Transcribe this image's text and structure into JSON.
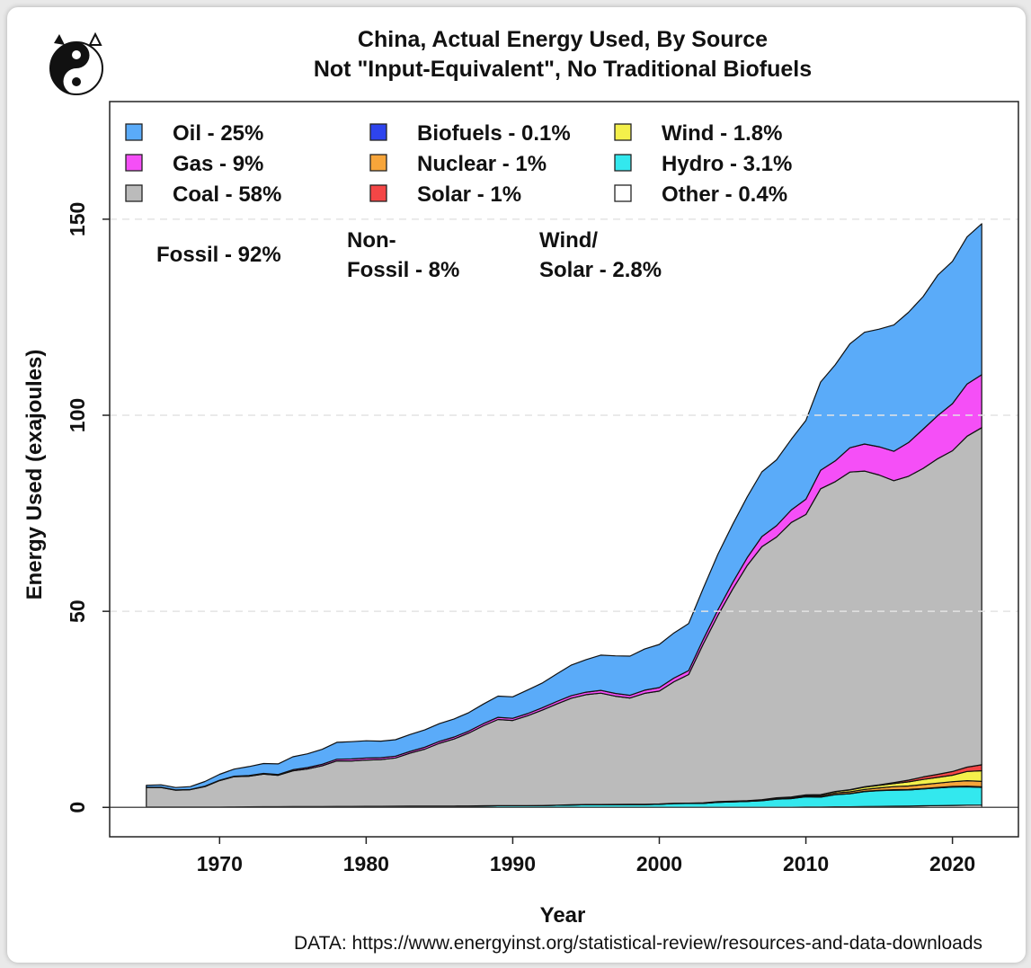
{
  "chart_data": {
    "type": "area",
    "title": "China, Actual Energy Used, By Source",
    "subtitle": "Not \"Input-Equivalent\", No Traditional Biofuels",
    "xlabel": "Year",
    "ylabel": "Energy Used (exajoules)",
    "xlim": [
      1962.5,
      2024.5
    ],
    "ylim": [
      -7.5,
      180
    ],
    "x_ticks": [
      1970,
      1980,
      1990,
      2000,
      2010,
      2020
    ],
    "y_ticks": [
      0,
      50,
      100,
      150
    ],
    "grid": "horizontal dashed",
    "legend": "top-left, inside plot, 3 columns",
    "x": [
      1965,
      1966,
      1967,
      1968,
      1969,
      1970,
      1971,
      1972,
      1973,
      1974,
      1975,
      1976,
      1977,
      1978,
      1979,
      1980,
      1981,
      1982,
      1983,
      1984,
      1985,
      1986,
      1987,
      1988,
      1989,
      1990,
      1991,
      1992,
      1993,
      1994,
      1995,
      1996,
      1997,
      1998,
      1999,
      2000,
      2001,
      2002,
      2003,
      2004,
      2005,
      2006,
      2007,
      2008,
      2009,
      2010,
      2011,
      2012,
      2013,
      2014,
      2015,
      2016,
      2017,
      2018,
      2019,
      2020,
      2021,
      2022
    ],
    "series": [
      {
        "name": "Other - 0.4%",
        "color": "#ffffff",
        "values": [
          0,
          0,
          0,
          0,
          0,
          0,
          0,
          0,
          0,
          0,
          0,
          0,
          0,
          0,
          0,
          0,
          0,
          0,
          0,
          0,
          0,
          0,
          0,
          0,
          0,
          0,
          0,
          0,
          0,
          0,
          0,
          0,
          0,
          0,
          0,
          0,
          0,
          0,
          0,
          0,
          0,
          0,
          0,
          0,
          0.05,
          0.1,
          0.1,
          0.15,
          0.15,
          0.2,
          0.25,
          0.3,
          0.35,
          0.4,
          0.45,
          0.5,
          0.55,
          0.6
        ]
      },
      {
        "name": "Hydro - 3.1%",
        "color": "#33e8ee",
        "values": [
          0.08,
          0.09,
          0.09,
          0.1,
          0.1,
          0.12,
          0.14,
          0.15,
          0.17,
          0.18,
          0.2,
          0.2,
          0.2,
          0.24,
          0.25,
          0.27,
          0.28,
          0.3,
          0.33,
          0.35,
          0.35,
          0.35,
          0.36,
          0.4,
          0.42,
          0.45,
          0.45,
          0.47,
          0.55,
          0.6,
          0.68,
          0.68,
          0.7,
          0.73,
          0.73,
          0.8,
          0.98,
          1.0,
          1.02,
          1.3,
          1.42,
          1.5,
          1.7,
          2.1,
          2.2,
          2.6,
          2.5,
          3.1,
          3.3,
          3.8,
          4.0,
          4.1,
          4.1,
          4.3,
          4.5,
          4.7,
          4.7,
          4.5
        ]
      },
      {
        "name": "Biofuels - 0.1%",
        "color": "#2e44ee",
        "values": [
          0,
          0,
          0,
          0,
          0,
          0,
          0,
          0,
          0,
          0,
          0,
          0,
          0,
          0,
          0,
          0,
          0,
          0,
          0,
          0,
          0,
          0,
          0,
          0,
          0,
          0,
          0,
          0,
          0,
          0,
          0,
          0,
          0,
          0,
          0,
          0,
          0,
          0,
          0,
          0,
          0,
          0,
          0.03,
          0.05,
          0.05,
          0.07,
          0.07,
          0.08,
          0.1,
          0.1,
          0.1,
          0.12,
          0.12,
          0.12,
          0.14,
          0.14,
          0.15,
          0.15
        ]
      },
      {
        "name": "Nuclear - 1%",
        "color": "#f7a53a",
        "values": [
          0,
          0,
          0,
          0,
          0,
          0,
          0,
          0,
          0,
          0,
          0,
          0,
          0,
          0,
          0,
          0,
          0,
          0,
          0,
          0,
          0,
          0,
          0,
          0,
          0,
          0,
          0,
          0,
          0,
          0.05,
          0.05,
          0.05,
          0.05,
          0.05,
          0.06,
          0.06,
          0.06,
          0.08,
          0.15,
          0.17,
          0.19,
          0.19,
          0.22,
          0.24,
          0.25,
          0.27,
          0.31,
          0.35,
          0.4,
          0.48,
          0.61,
          0.76,
          0.88,
          1.0,
          1.1,
          1.2,
          1.4,
          1.4
        ]
      },
      {
        "name": "Wind - 1.8%",
        "color": "#f4f04b",
        "values": [
          0,
          0,
          0,
          0,
          0,
          0,
          0,
          0,
          0,
          0,
          0,
          0,
          0,
          0,
          0,
          0,
          0,
          0,
          0,
          0,
          0,
          0,
          0,
          0,
          0,
          0,
          0,
          0,
          0,
          0,
          0,
          0,
          0,
          0,
          0,
          0,
          0,
          0,
          0,
          0,
          0,
          0.01,
          0.02,
          0.05,
          0.1,
          0.16,
          0.26,
          0.35,
          0.5,
          0.58,
          0.66,
          0.8,
          1.06,
          1.3,
          1.45,
          1.67,
          2.37,
          2.7
        ]
      },
      {
        "name": "Solar - 1%",
        "color": "#f44646",
        "values": [
          0,
          0,
          0,
          0,
          0,
          0,
          0,
          0,
          0,
          0,
          0,
          0,
          0,
          0,
          0,
          0,
          0,
          0,
          0,
          0,
          0,
          0,
          0,
          0,
          0,
          0,
          0,
          0,
          0,
          0,
          0,
          0,
          0,
          0,
          0,
          0,
          0,
          0,
          0,
          0,
          0,
          0,
          0,
          0,
          0,
          0,
          0.02,
          0.03,
          0.06,
          0.11,
          0.14,
          0.24,
          0.43,
          0.64,
          0.8,
          0.94,
          1.1,
          1.5
        ]
      },
      {
        "name": "Coal - 58%",
        "color": "#bbbbbb",
        "values": [
          5.0,
          5.0,
          4.3,
          4.4,
          5.2,
          6.7,
          7.7,
          7.8,
          8.3,
          8.0,
          9.1,
          9.6,
          10.4,
          11.6,
          11.6,
          11.8,
          11.9,
          12.3,
          13.5,
          14.5,
          16.0,
          17.1,
          18.6,
          20.4,
          22.0,
          21.7,
          22.9,
          24.3,
          25.8,
          27.2,
          28.0,
          28.4,
          27.6,
          27.1,
          28.3,
          28.8,
          31.0,
          32.8,
          40.5,
          47.5,
          54.0,
          60.0,
          64.5,
          66.5,
          70.0,
          71.5,
          78.0,
          79.0,
          81.0,
          80.5,
          79.0,
          77.0,
          77.5,
          78.7,
          80.5,
          81.8,
          84.4,
          86.0
        ]
      },
      {
        "name": "Gas - 9%",
        "color": "#f54ff7",
        "values": [
          0.05,
          0.06,
          0.07,
          0.08,
          0.1,
          0.1,
          0.12,
          0.15,
          0.2,
          0.2,
          0.3,
          0.35,
          0.4,
          0.45,
          0.5,
          0.5,
          0.5,
          0.45,
          0.45,
          0.5,
          0.5,
          0.5,
          0.5,
          0.55,
          0.55,
          0.55,
          0.55,
          0.6,
          0.65,
          0.65,
          0.65,
          0.7,
          0.7,
          0.7,
          0.8,
          0.9,
          0.95,
          1.0,
          1.2,
          1.4,
          1.7,
          2.0,
          2.6,
          2.9,
          3.2,
          3.9,
          4.7,
          5.3,
          6.2,
          6.9,
          7.2,
          7.5,
          8.6,
          10.0,
          11.0,
          12.0,
          13.3,
          13.5
        ]
      },
      {
        "name": "Oil - 25%",
        "color": "#5aabf9",
        "values": [
          0.5,
          0.6,
          0.6,
          0.7,
          1.2,
          1.5,
          1.8,
          2.3,
          2.5,
          2.7,
          3.3,
          3.5,
          3.8,
          4.3,
          4.4,
          4.4,
          4.2,
          4.2,
          4.3,
          4.4,
          4.5,
          4.6,
          4.7,
          5.0,
          5.4,
          5.5,
          6.0,
          6.3,
          7.0,
          7.8,
          8.3,
          9.0,
          9.6,
          10.0,
          10.5,
          11.0,
          11.5,
          12.0,
          13.0,
          14.2,
          14.8,
          15.5,
          16.5,
          16.8,
          18.0,
          20.1,
          22.5,
          24.5,
          26.5,
          28.5,
          30.0,
          32.2,
          33.2,
          33.8,
          35.8,
          36.3,
          37.5,
          38.5
        ]
      }
    ],
    "annotations": [
      "Fossil - 92%",
      "Non-",
      "Fossil - 8%",
      "Wind/",
      "Solar - 2.8%"
    ],
    "legend_entries": [
      "Oil - 25%",
      "Gas - 9%",
      "Coal - 58%",
      "Biofuels - 0.1%",
      "Nuclear - 1%",
      "Solar - 1%",
      "Wind - 1.8%",
      "Hydro - 3.1%",
      "Other - 0.4%"
    ],
    "source_note": "DATA: https://www.energyinst.org/statistical-review/resources-and-data-downloads"
  }
}
